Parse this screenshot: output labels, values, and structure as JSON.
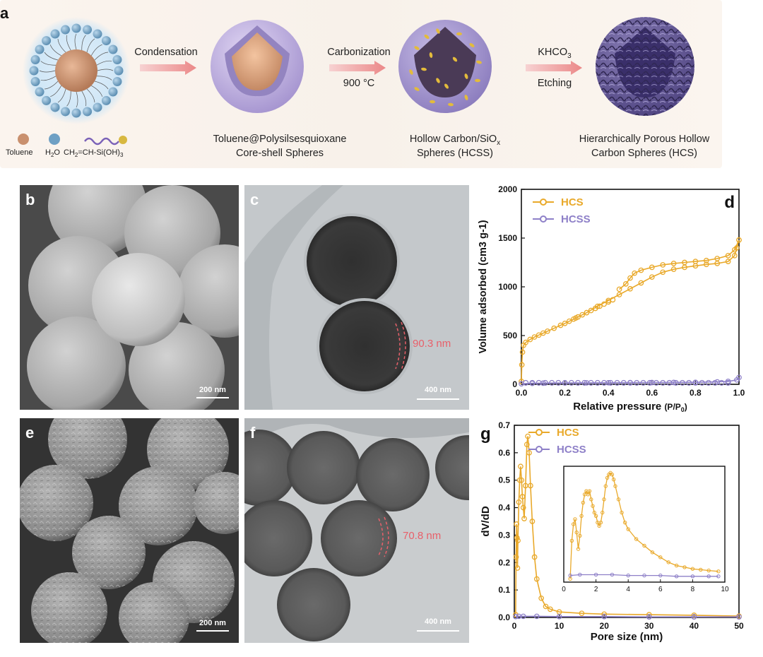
{
  "panel_labels": {
    "a": "a",
    "b": "b",
    "c": "c",
    "d": "d",
    "e": "e",
    "f": "f",
    "g": "g"
  },
  "schematic": {
    "legend": {
      "toluene": "Toluene",
      "water_prefix": "H",
      "water_sub": "2",
      "water_suffix": "O",
      "silane_a": "CH",
      "silane_sub1": "2",
      "silane_b": "=CH-Si(OH)",
      "silane_sub2": "3"
    },
    "arrows": {
      "condensation": "Condensation",
      "carbonization": "Carbonization",
      "temperature": "900 °C",
      "khco3_a": "KHCO",
      "khco3_sub": "3",
      "etching": "Etching"
    },
    "steps": {
      "core_shell_line1": "Toluene@Polysilsesquioxane",
      "core_shell_line2": "Core-shell Spheres",
      "hcss_line1_a": "Hollow Carbon/SiO",
      "hcss_line1_sub": "x",
      "hcss_line2": "Spheres (HCSS)",
      "hcs_line1": "Hierarchically Porous Hollow",
      "hcs_line2": "Carbon Spheres (HCS)"
    },
    "colors": {
      "core": "#c98f6a",
      "shell": "#a99ad0",
      "carbon": "#6a5c90",
      "accent": "#e0b640"
    }
  },
  "micrographs": {
    "b_scale": "200 nm",
    "c_scale": "400 nm",
    "c_thickness": "90.3 nm",
    "e_scale": "200 nm",
    "f_scale": "400 nm",
    "f_thickness": "70.8 nm"
  },
  "chart_data": [
    {
      "id": "d",
      "type": "line",
      "xlabel_main": "Relative pressure",
      "xlabel_unit": "(P/P",
      "xlabel_unit_sub": "0",
      "xlabel_unit_end": ")",
      "ylabel": "Volume adsorbed (cm3 g-1)",
      "xlim": [
        0,
        1.0
      ],
      "ylim": [
        0,
        2000
      ],
      "xticks": [
        0.0,
        0.2,
        0.4,
        0.6,
        0.8,
        1.0
      ],
      "yticks": [
        0,
        500,
        1000,
        1500,
        2000
      ],
      "legend_position": "top-left",
      "series": [
        {
          "name": "HCS",
          "color": "#e9a92a",
          "adsorption": [
            [
              0.0,
              30
            ],
            [
              0.002,
              200
            ],
            [
              0.005,
              330
            ],
            [
              0.01,
              400
            ],
            [
              0.02,
              430
            ],
            [
              0.04,
              460
            ],
            [
              0.06,
              485
            ],
            [
              0.08,
              505
            ],
            [
              0.1,
              525
            ],
            [
              0.12,
              545
            ],
            [
              0.15,
              575
            ],
            [
              0.18,
              605
            ],
            [
              0.2,
              625
            ],
            [
              0.25,
              680
            ],
            [
              0.3,
              735
            ],
            [
              0.35,
              800
            ],
            [
              0.4,
              860
            ],
            [
              0.45,
              920
            ],
            [
              0.5,
              980
            ],
            [
              0.55,
              1040
            ],
            [
              0.6,
              1100
            ],
            [
              0.65,
              1150
            ],
            [
              0.7,
              1180
            ],
            [
              0.75,
              1200
            ],
            [
              0.8,
              1215
            ],
            [
              0.85,
              1230
            ],
            [
              0.9,
              1240
            ],
            [
              0.95,
              1260
            ],
            [
              0.98,
              1320
            ],
            [
              0.99,
              1400
            ],
            [
              1.0,
              1480
            ]
          ],
          "desorption": [
            [
              1.0,
              1480
            ],
            [
              0.98,
              1380
            ],
            [
              0.95,
              1320
            ],
            [
              0.9,
              1290
            ],
            [
              0.85,
              1270
            ],
            [
              0.8,
              1260
            ],
            [
              0.75,
              1250
            ],
            [
              0.7,
              1240
            ],
            [
              0.65,
              1225
            ],
            [
              0.6,
              1200
            ],
            [
              0.55,
              1170
            ],
            [
              0.52,
              1140
            ],
            [
              0.5,
              1090
            ],
            [
              0.48,
              1030
            ],
            [
              0.45,
              975
            ]
          ]
        },
        {
          "name": "HCSS",
          "color": "#8e80c8",
          "adsorption": [
            [
              0.0,
              5
            ],
            [
              0.05,
              10
            ],
            [
              0.1,
              12
            ],
            [
              0.2,
              14
            ],
            [
              0.3,
              15
            ],
            [
              0.4,
              16
            ],
            [
              0.5,
              17
            ],
            [
              0.6,
              18
            ],
            [
              0.7,
              19
            ],
            [
              0.8,
              20
            ],
            [
              0.9,
              25
            ],
            [
              0.95,
              30
            ],
            [
              0.99,
              45
            ],
            [
              1.0,
              70
            ]
          ],
          "desorption": []
        }
      ]
    },
    {
      "id": "g",
      "type": "line",
      "xlabel": "Pore size (nm)",
      "ylabel": "dV/dD",
      "xlim": [
        0,
        50
      ],
      "ylim": [
        0,
        0.7
      ],
      "xticks": [
        0,
        10,
        20,
        30,
        40,
        50
      ],
      "yticks": [
        0.0,
        0.1,
        0.2,
        0.3,
        0.4,
        0.5,
        0.6,
        0.7
      ],
      "legend_position": "top-left",
      "series": [
        {
          "name": "HCS",
          "color": "#e9a92a",
          "values": [
            [
              0.3,
              0.01
            ],
            [
              0.4,
              0.22
            ],
            [
              0.5,
              0.34
            ],
            [
              0.6,
              0.29
            ],
            [
              0.7,
              0.18
            ],
            [
              0.8,
              0.28
            ],
            [
              1.0,
              0.42
            ],
            [
              1.2,
              0.5
            ],
            [
              1.4,
              0.55
            ],
            [
              1.6,
              0.5
            ],
            [
              1.8,
              0.44
            ],
            [
              2.0,
              0.4
            ],
            [
              2.2,
              0.36
            ],
            [
              2.5,
              0.48
            ],
            [
              2.8,
              0.63
            ],
            [
              3.0,
              0.66
            ],
            [
              3.3,
              0.6
            ],
            [
              3.6,
              0.48
            ],
            [
              4.0,
              0.35
            ],
            [
              4.5,
              0.22
            ],
            [
              5.0,
              0.14
            ],
            [
              6.0,
              0.07
            ],
            [
              7.0,
              0.04
            ],
            [
              8.0,
              0.03
            ],
            [
              10,
              0.02
            ],
            [
              15,
              0.015
            ],
            [
              20,
              0.012
            ],
            [
              30,
              0.01
            ],
            [
              40,
              0.008
            ],
            [
              50,
              0.005
            ]
          ]
        },
        {
          "name": "HCSS",
          "color": "#8e80c8",
          "values": [
            [
              0.3,
              0.003
            ],
            [
              1,
              0.004
            ],
            [
              2,
              0.004
            ],
            [
              5,
              0.004
            ],
            [
              10,
              0.003
            ],
            [
              20,
              0.003
            ],
            [
              30,
              0.002
            ],
            [
              40,
              0.002
            ],
            [
              50,
              0.002
            ]
          ]
        }
      ],
      "inset": {
        "xlim": [
          0,
          10
        ],
        "ylim": [
          0,
          0.7
        ],
        "xticks": [
          0,
          2,
          4,
          6,
          8,
          10
        ],
        "series": [
          {
            "name": "HCS",
            "color": "#e9a92a",
            "values": [
              [
                0.4,
                0.02
              ],
              [
                0.5,
                0.25
              ],
              [
                0.6,
                0.35
              ],
              [
                0.7,
                0.38
              ],
              [
                0.8,
                0.3
              ],
              [
                0.9,
                0.2
              ],
              [
                1.0,
                0.28
              ],
              [
                1.1,
                0.4
              ],
              [
                1.2,
                0.48
              ],
              [
                1.3,
                0.53
              ],
              [
                1.4,
                0.55
              ],
              [
                1.5,
                0.53
              ],
              [
                1.6,
                0.55
              ],
              [
                1.7,
                0.5
              ],
              [
                1.8,
                0.46
              ],
              [
                1.9,
                0.42
              ],
              [
                2.0,
                0.4
              ],
              [
                2.1,
                0.36
              ],
              [
                2.2,
                0.34
              ],
              [
                2.3,
                0.36
              ],
              [
                2.4,
                0.42
              ],
              [
                2.5,
                0.5
              ],
              [
                2.6,
                0.58
              ],
              [
                2.7,
                0.63
              ],
              [
                2.8,
                0.65
              ],
              [
                2.9,
                0.66
              ],
              [
                3.0,
                0.65
              ],
              [
                3.1,
                0.62
              ],
              [
                3.2,
                0.58
              ],
              [
                3.4,
                0.5
              ],
              [
                3.6,
                0.42
              ],
              [
                3.8,
                0.36
              ],
              [
                4.0,
                0.32
              ],
              [
                4.5,
                0.26
              ],
              [
                5.0,
                0.22
              ],
              [
                5.5,
                0.18
              ],
              [
                6.0,
                0.15
              ],
              [
                6.5,
                0.12
              ],
              [
                7.0,
                0.1
              ],
              [
                7.5,
                0.09
              ],
              [
                8.0,
                0.08
              ],
              [
                8.5,
                0.075
              ],
              [
                9.0,
                0.07
              ],
              [
                9.6,
                0.065
              ]
            ]
          },
          {
            "name": "HCSS",
            "color": "#8e80c8",
            "values": [
              [
                0.4,
                0.04
              ],
              [
                1,
                0.045
              ],
              [
                2,
                0.045
              ],
              [
                3,
                0.045
              ],
              [
                4,
                0.04
              ],
              [
                5,
                0.04
              ],
              [
                6,
                0.04
              ],
              [
                7,
                0.035
              ],
              [
                8,
                0.035
              ],
              [
                9,
                0.035
              ],
              [
                9.6,
                0.035
              ]
            ]
          }
        ]
      }
    }
  ]
}
